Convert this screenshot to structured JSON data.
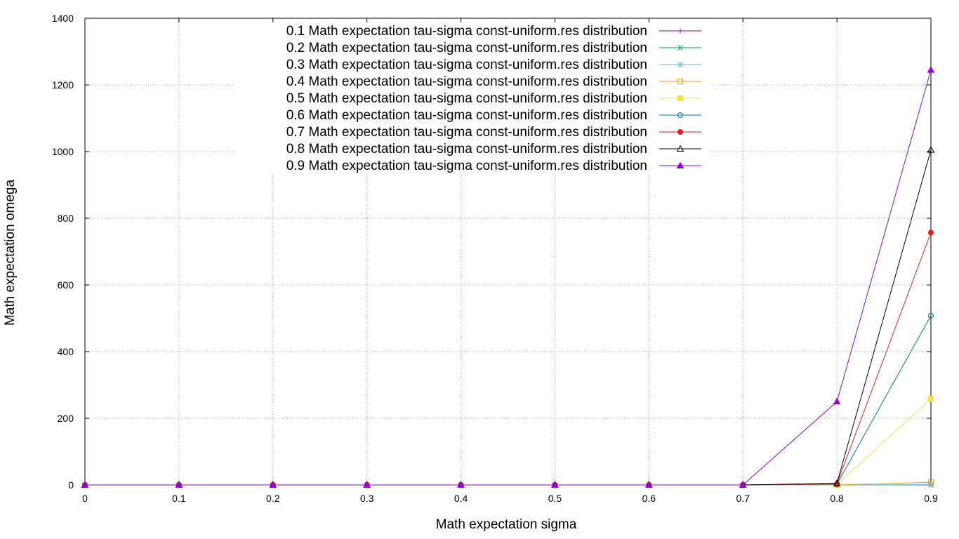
{
  "chart_data": {
    "type": "line",
    "xlabel": "Math expectation sigma",
    "ylabel": "Math expectation omega",
    "xlim": [
      0,
      0.9
    ],
    "ylim": [
      0,
      1400
    ],
    "x_ticks": [
      "0",
      "0.1",
      "0.2",
      "0.3",
      "0.4",
      "0.5",
      "0.6",
      "0.7",
      "0.8",
      "0.9"
    ],
    "y_ticks": [
      "0",
      "200",
      "400",
      "600",
      "800",
      "1000",
      "1200",
      "1400"
    ],
    "grid": true,
    "legend_position": "top",
    "x": [
      0,
      0.1,
      0.2,
      0.3,
      0.4,
      0.5,
      0.6,
      0.7,
      0.8,
      0.9
    ],
    "series": [
      {
        "name": "0.1 Math expectation tau-sigma const-uniform.res distribution",
        "color": "#8b008b",
        "marker": "plus",
        "values": [
          0,
          0,
          0,
          0,
          0,
          0,
          0,
          0,
          0,
          0
        ]
      },
      {
        "name": "0.2 Math expectation tau-sigma const-uniform.res distribution",
        "color": "#009e73",
        "marker": "cross",
        "values": [
          0,
          0,
          0,
          0,
          0,
          0,
          0,
          0,
          0,
          0
        ]
      },
      {
        "name": "0.3 Math expectation tau-sigma const-uniform.res distribution",
        "color": "#56b4e9",
        "marker": "star",
        "values": [
          0,
          0,
          0,
          0,
          0,
          0,
          0,
          0,
          0,
          1
        ]
      },
      {
        "name": "0.4 Math expectation tau-sigma const-uniform.res distribution",
        "color": "#e69f00",
        "marker": "square-open",
        "values": [
          0,
          0,
          0,
          0,
          0,
          0,
          0,
          0,
          0,
          8
        ]
      },
      {
        "name": "0.5 Math expectation tau-sigma const-uniform.res distribution",
        "color": "#f0e442",
        "marker": "square-filled",
        "values": [
          0,
          0,
          0,
          0,
          0,
          0,
          0,
          0,
          1,
          258
        ]
      },
      {
        "name": "0.6 Math expectation tau-sigma const-uniform.res distribution",
        "color": "#0072b2",
        "marker": "circle-open",
        "values": [
          0,
          0,
          0,
          0,
          0,
          0,
          0,
          0,
          2,
          508
        ]
      },
      {
        "name": "0.7 Math expectation tau-sigma const-uniform.res distribution",
        "color": "#e51e10",
        "marker": "circle-filled",
        "values": [
          0,
          0,
          0,
          0,
          0,
          0,
          0,
          0,
          3,
          757
        ]
      },
      {
        "name": "0.8 Math expectation tau-sigma const-uniform.res distribution",
        "color": "#000000",
        "marker": "triangle-open",
        "values": [
          0,
          0,
          0,
          0,
          0,
          0,
          0,
          0,
          5,
          1005
        ]
      },
      {
        "name": "0.9 Math expectation tau-sigma const-uniform.res distribution",
        "color": "#9400d3",
        "marker": "triangle-filled",
        "values": [
          0,
          0,
          0,
          0,
          0,
          0,
          0,
          0,
          250,
          1245
        ]
      }
    ]
  }
}
